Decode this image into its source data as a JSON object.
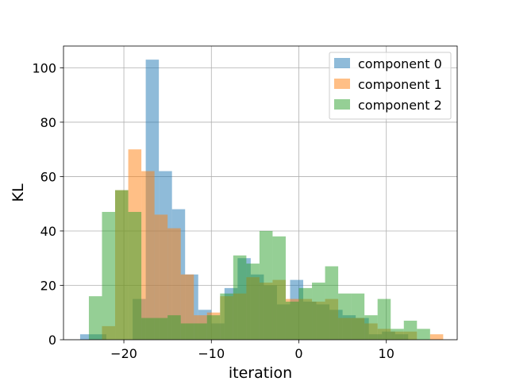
{
  "chart_data": {
    "type": "bar",
    "title": "",
    "xlabel": "iteration",
    "ylabel": "KL",
    "xlim": [
      -26.9,
      18.1
    ],
    "ylim": [
      0,
      108
    ],
    "x_ticks": [
      -20,
      -10,
      0,
      10
    ],
    "y_ticks": [
      0,
      20,
      40,
      60,
      80,
      100
    ],
    "x_tick_labels": [
      "−20",
      "−10",
      "0",
      "10"
    ],
    "y_tick_labels": [
      "0",
      "20",
      "40",
      "60",
      "80",
      "100"
    ],
    "grid": true,
    "legend_position": "top-right",
    "series": [
      {
        "name": "component 0",
        "color": "#1f77b4",
        "alpha": 0.5,
        "bins": [
          [
            -25,
            -23.5,
            2
          ],
          [
            -23.5,
            -22,
            2
          ],
          [
            -22,
            -20.5,
            0
          ],
          [
            -20.5,
            -19,
            0
          ],
          [
            -19,
            -17.5,
            15
          ],
          [
            -17.5,
            -16,
            103
          ],
          [
            -16,
            -14.5,
            62
          ],
          [
            -14.5,
            -13,
            48
          ],
          [
            -13,
            -11.5,
            24
          ],
          [
            -11.5,
            -10,
            11
          ],
          [
            -10,
            -8.5,
            6
          ],
          [
            -8.5,
            -7,
            19
          ],
          [
            -7,
            -5.5,
            30
          ],
          [
            -5.5,
            -4,
            24
          ],
          [
            -4,
            -2.5,
            20
          ],
          [
            -2.5,
            -1,
            13
          ],
          [
            -1,
            0.5,
            22
          ],
          [
            0.5,
            2,
            14
          ],
          [
            2,
            3.5,
            13
          ],
          [
            3.5,
            5,
            11
          ],
          [
            5,
            6.5,
            9
          ],
          [
            6.5,
            8,
            8
          ],
          [
            8,
            9.5,
            2
          ],
          [
            9.5,
            11,
            3
          ],
          [
            11,
            12.5,
            2
          ],
          [
            12.5,
            14,
            0
          ]
        ]
      },
      {
        "name": "component 1",
        "color": "#ff7f0e",
        "alpha": 0.5,
        "bins": [
          [
            -22.5,
            -21,
            5
          ],
          [
            -21,
            -19.5,
            55
          ],
          [
            -19.5,
            -18,
            70
          ],
          [
            -18,
            -16.5,
            62
          ],
          [
            -16.5,
            -15,
            46
          ],
          [
            -15,
            -13.5,
            41
          ],
          [
            -13.5,
            -12,
            24
          ],
          [
            -12,
            -10.5,
            9
          ],
          [
            -10.5,
            -9,
            10
          ],
          [
            -9,
            -7.5,
            16
          ],
          [
            -7.5,
            -6,
            17
          ],
          [
            -6,
            -4.5,
            23
          ],
          [
            -4.5,
            -3,
            21
          ],
          [
            -3,
            -1.5,
            22
          ],
          [
            -1.5,
            0,
            15
          ],
          [
            0,
            1.5,
            15
          ],
          [
            1.5,
            3,
            14
          ],
          [
            3,
            4.5,
            15
          ],
          [
            4.5,
            6,
            8
          ],
          [
            6,
            7.5,
            8
          ],
          [
            7.5,
            9,
            6
          ],
          [
            9,
            10.5,
            4
          ],
          [
            10.5,
            12,
            3
          ],
          [
            12,
            13.5,
            3
          ],
          [
            13.5,
            15,
            0
          ],
          [
            15,
            16.5,
            2
          ]
        ]
      },
      {
        "name": "component 2",
        "color": "#2ca02c",
        "alpha": 0.5,
        "bins": [
          [
            -24,
            -22.5,
            16
          ],
          [
            -22.5,
            -21,
            47
          ],
          [
            -21,
            -19.5,
            55
          ],
          [
            -19.5,
            -18,
            47
          ],
          [
            -18,
            -16.5,
            8
          ],
          [
            -16.5,
            -15,
            8
          ],
          [
            -15,
            -13.5,
            9
          ],
          [
            -13.5,
            -12,
            6
          ],
          [
            -12,
            -10.5,
            6
          ],
          [
            -10.5,
            -9,
            9
          ],
          [
            -9,
            -7.5,
            17
          ],
          [
            -7.5,
            -6,
            31
          ],
          [
            -6,
            -4.5,
            28
          ],
          [
            -4.5,
            -3,
            40
          ],
          [
            -3,
            -1.5,
            38
          ],
          [
            -1.5,
            0,
            14
          ],
          [
            0,
            1.5,
            19
          ],
          [
            1.5,
            3,
            21
          ],
          [
            3,
            4.5,
            27
          ],
          [
            4.5,
            6,
            17
          ],
          [
            6,
            7.5,
            17
          ],
          [
            7.5,
            9,
            9
          ],
          [
            9,
            10.5,
            15
          ],
          [
            10.5,
            12,
            4
          ],
          [
            12,
            13.5,
            7
          ],
          [
            13.5,
            15,
            4
          ]
        ]
      }
    ]
  }
}
